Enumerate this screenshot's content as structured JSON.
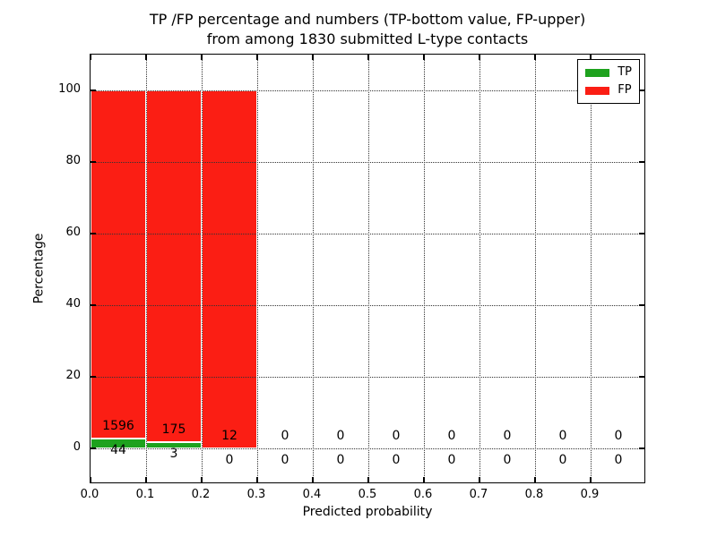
{
  "figure": {
    "title_line1": "TP /FP percentage and numbers (TP-bottom value, FP-upper)",
    "title_line2": "from among 1830 submitted L-type contacts",
    "xlabel": "Predicted probability",
    "ylabel": "Percentage"
  },
  "chart_data": {
    "type": "bar",
    "subtype": "stacked-percentage-histogram",
    "title": "TP /FP percentage and numbers (TP-bottom value, FP-upper) from among 1830 submitted L-type contacts",
    "xlabel": "Predicted probability",
    "ylabel": "Percentage",
    "xlim": [
      0.0,
      1.0
    ],
    "ylim": [
      -10,
      110
    ],
    "xticks": [
      "0.0",
      "0.1",
      "0.2",
      "0.3",
      "0.4",
      "0.5",
      "0.6",
      "0.7",
      "0.8",
      "0.9"
    ],
    "yticks": [
      0,
      20,
      40,
      60,
      80,
      100
    ],
    "grid": true,
    "legend_position": "upper right",
    "bin_starts": [
      0.0,
      0.1,
      0.2,
      0.3,
      0.4,
      0.5,
      0.6,
      0.7,
      0.8,
      0.9
    ],
    "bin_width": 0.1,
    "series": [
      {
        "name": "TP",
        "color": "#1ea21e",
        "counts": [
          44,
          3,
          0,
          0,
          0,
          0,
          0,
          0,
          0,
          0
        ],
        "pct": [
          2.68,
          1.69,
          0,
          0,
          0,
          0,
          0,
          0,
          0,
          0
        ]
      },
      {
        "name": "FP",
        "color": "#fb1e14",
        "counts": [
          1596,
          175,
          12,
          0,
          0,
          0,
          0,
          0,
          0,
          0
        ],
        "pct": [
          97.32,
          98.31,
          100,
          0,
          0,
          0,
          0,
          0,
          0,
          0
        ]
      }
    ]
  }
}
